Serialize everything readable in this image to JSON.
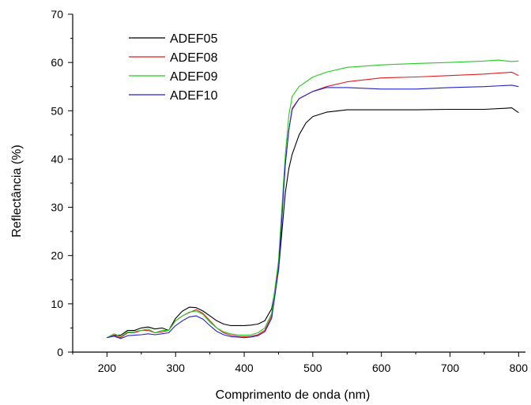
{
  "chart_data": {
    "type": "line",
    "xlabel": "Comprimento de onda (nm)",
    "ylabel": "Reflectância (%)",
    "xlim": [
      150,
      810
    ],
    "ylim": [
      0,
      70
    ],
    "xticks": [
      200,
      300,
      400,
      500,
      600,
      700,
      800
    ],
    "yticks": [
      0,
      10,
      20,
      30,
      40,
      50,
      60,
      70
    ],
    "grid": false,
    "legend_position": "top-left",
    "series": [
      {
        "name": "ADEF05",
        "color": "#000000",
        "x": [
          200,
          210,
          220,
          230,
          240,
          250,
          260,
          270,
          280,
          290,
          300,
          310,
          320,
          330,
          340,
          350,
          360,
          370,
          380,
          390,
          400,
          410,
          420,
          430,
          440,
          450,
          455,
          460,
          465,
          470,
          480,
          490,
          500,
          520,
          550,
          600,
          650,
          700,
          750,
          780,
          790,
          800
        ],
        "y": [
          3,
          3.5,
          3.5,
          4.5,
          4.5,
          5,
          5.2,
          4.8,
          5,
          4.5,
          7,
          8.5,
          9.3,
          9.2,
          8.5,
          7.5,
          6.5,
          5.8,
          5.5,
          5.5,
          5.5,
          5.6,
          5.8,
          6.5,
          9,
          17,
          25,
          33,
          38,
          41,
          45,
          47.5,
          48.8,
          49.7,
          50.2,
          50.2,
          50.2,
          50.3,
          50.3,
          50.5,
          50.6,
          49.6
        ]
      },
      {
        "name": "ADEF08",
        "color": "#e31a1c",
        "x": [
          200,
          210,
          220,
          230,
          240,
          250,
          260,
          270,
          280,
          290,
          300,
          310,
          320,
          330,
          340,
          350,
          360,
          370,
          380,
          390,
          400,
          410,
          420,
          430,
          440,
          450,
          455,
          460,
          465,
          470,
          480,
          500,
          520,
          550,
          600,
          650,
          700,
          750,
          790,
          800
        ],
        "y": [
          3,
          3.5,
          3,
          4,
          4,
          4.5,
          4.5,
          4,
          4.2,
          4.5,
          6.5,
          7.5,
          8.2,
          8.8,
          8,
          6.5,
          5,
          4,
          3.5,
          3.3,
          3.2,
          3.3,
          3.6,
          4.5,
          7.5,
          18,
          29,
          39,
          46,
          50.5,
          52.5,
          54,
          55,
          56,
          56.8,
          57,
          57.3,
          57.6,
          58,
          57.3
        ]
      },
      {
        "name": "ADEF09",
        "color": "#22cc22",
        "x": [
          200,
          210,
          220,
          230,
          240,
          250,
          260,
          270,
          280,
          290,
          300,
          310,
          320,
          330,
          340,
          350,
          360,
          370,
          380,
          390,
          400,
          410,
          420,
          430,
          440,
          450,
          455,
          460,
          465,
          470,
          480,
          500,
          520,
          550,
          600,
          650,
          700,
          750,
          770,
          790,
          800
        ],
        "y": [
          3,
          3.8,
          3.2,
          4.2,
          4.3,
          4.5,
          4.8,
          4,
          4.5,
          4.5,
          6.5,
          7.5,
          8.3,
          8.5,
          7.8,
          6.2,
          5,
          4.2,
          3.8,
          3.6,
          3.5,
          3.6,
          4,
          5,
          8,
          19,
          30,
          41,
          49,
          53,
          55,
          57,
          58,
          59,
          59.5,
          59.8,
          60,
          60.3,
          60.5,
          60.2,
          60.3
        ]
      },
      {
        "name": "ADEF10",
        "color": "#2222cc",
        "x": [
          200,
          210,
          220,
          230,
          240,
          250,
          260,
          270,
          280,
          290,
          300,
          310,
          320,
          330,
          340,
          350,
          360,
          370,
          380,
          390,
          400,
          410,
          420,
          430,
          440,
          450,
          455,
          460,
          465,
          470,
          480,
          500,
          520,
          550,
          600,
          650,
          700,
          750,
          790,
          800
        ],
        "y": [
          3,
          3.3,
          2.8,
          3.4,
          3.5,
          3.6,
          3.8,
          3.6,
          3.8,
          4,
          5.5,
          6.5,
          7.3,
          7.5,
          6.8,
          5.5,
          4.3,
          3.6,
          3.2,
          3.1,
          3,
          3.1,
          3.4,
          4.2,
          7,
          17,
          28,
          39,
          46,
          50.3,
          52.5,
          54,
          54.8,
          54.8,
          54.5,
          54.5,
          54.8,
          55,
          55.3,
          55
        ]
      }
    ]
  }
}
